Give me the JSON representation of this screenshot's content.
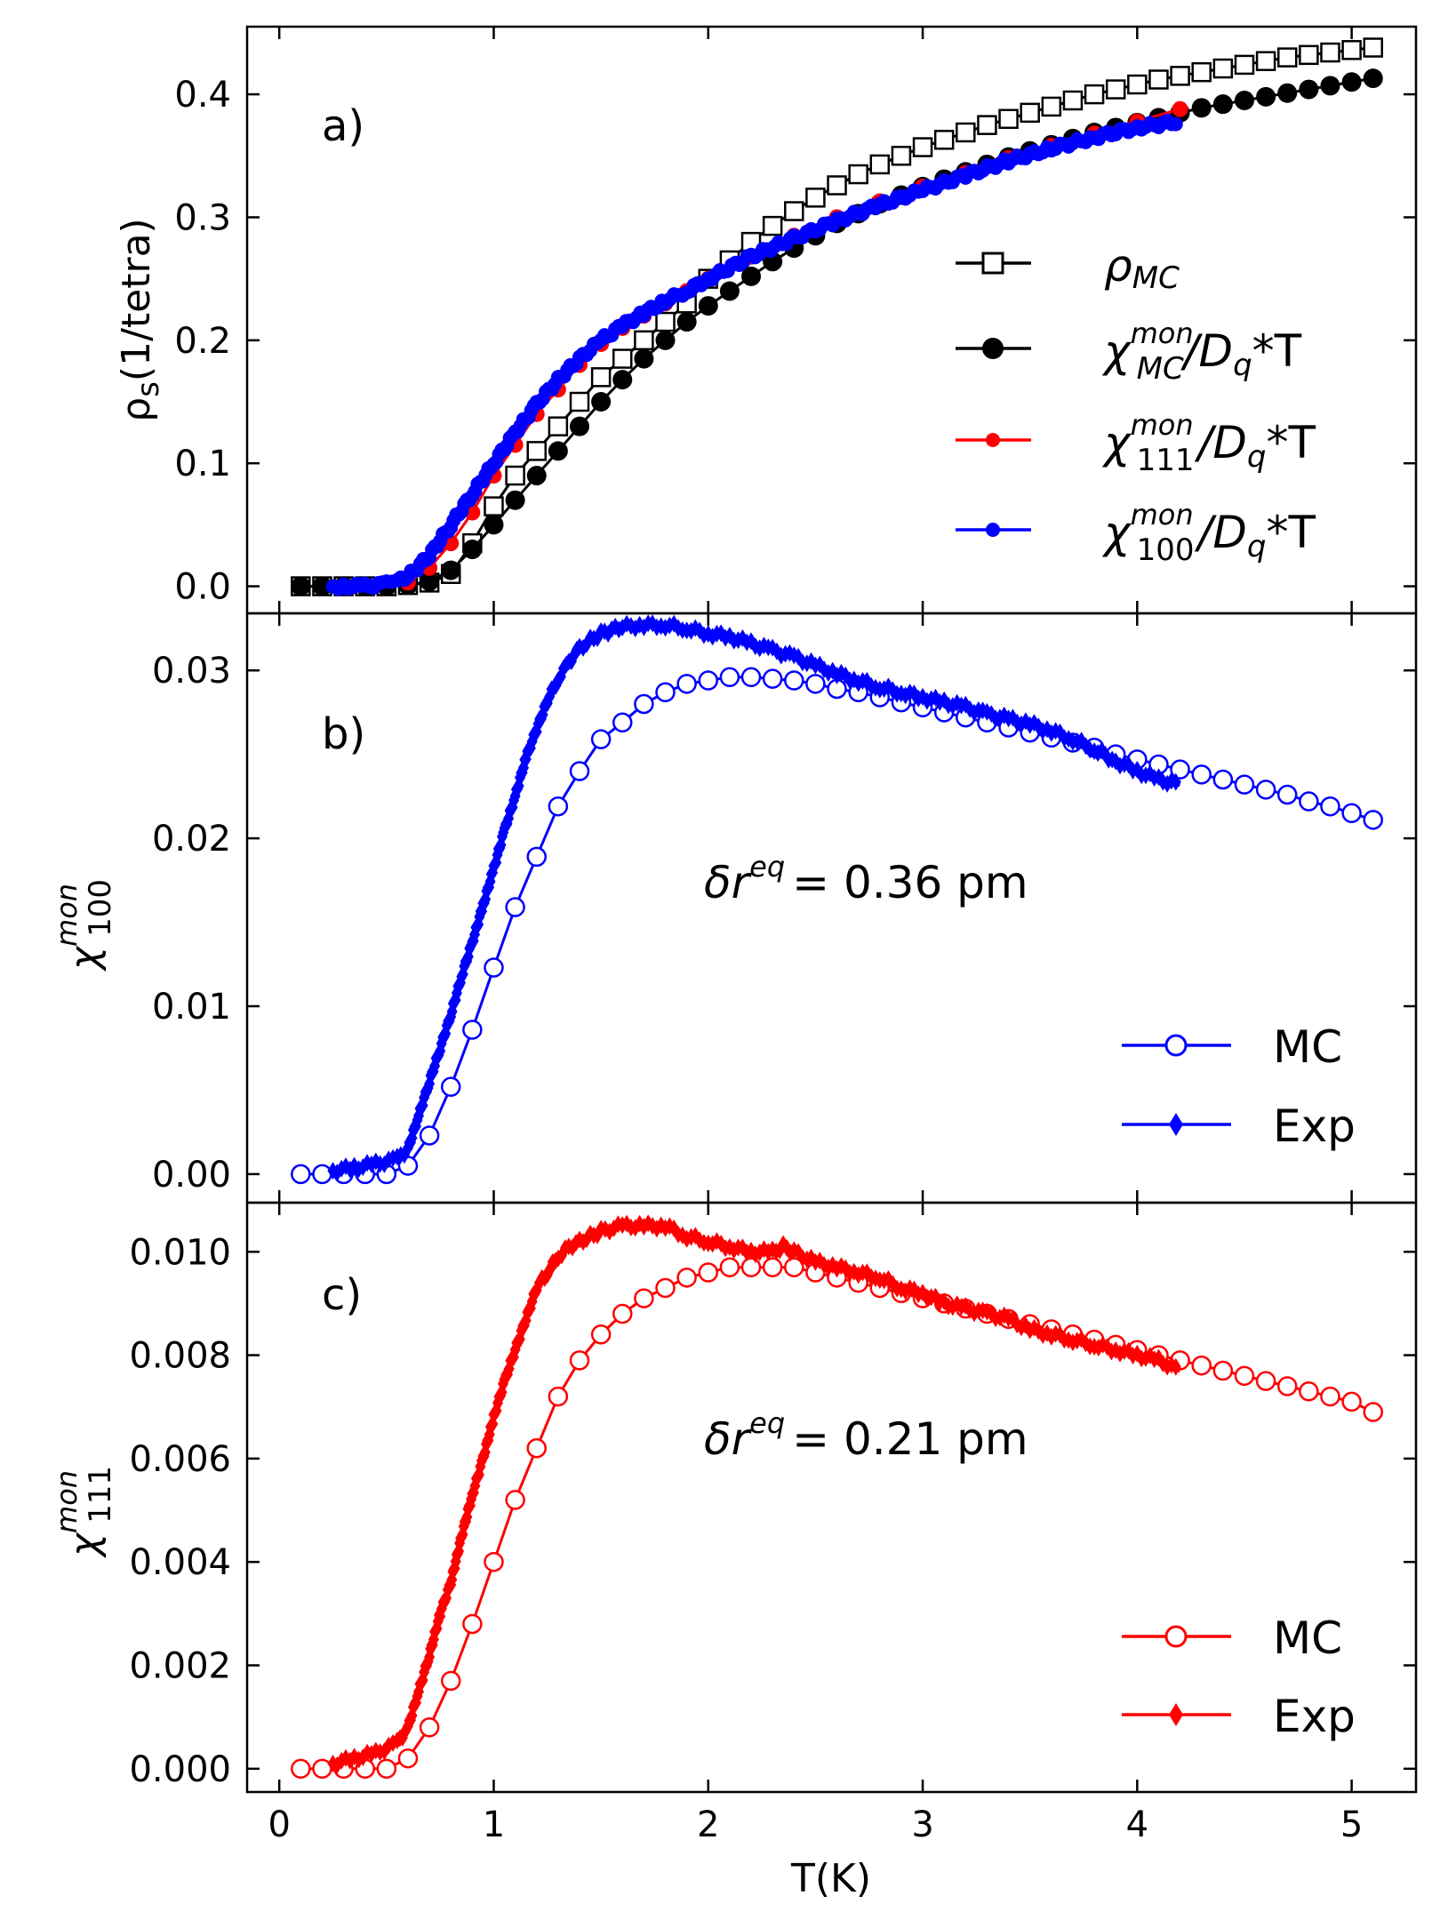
{
  "chart_data": [
    {
      "panel": "a)",
      "type": "scatter",
      "ylabel": "ρs(1/tetra)",
      "xlim": [
        -0.15,
        5.3
      ],
      "ylim": [
        -0.022,
        0.455
      ],
      "xticks": [
        0,
        1,
        2,
        3,
        4,
        5
      ],
      "yticks": [
        "0.0",
        "0.1",
        "0.2",
        "0.3",
        "0.4"
      ],
      "legend_position": "right",
      "legend": [
        "ρMC",
        "χMCmon/Dq*T",
        "χ111mon/Dq*T",
        "χ100mon/Dq*T"
      ],
      "series": [
        {
          "name": "rho_MC",
          "color": "#000000",
          "marker": "open-square",
          "x": [
            0.1,
            0.2,
            0.3,
            0.4,
            0.5,
            0.6,
            0.7,
            0.8,
            0.9,
            1.0,
            1.1,
            1.2,
            1.3,
            1.4,
            1.5,
            1.6,
            1.7,
            1.8,
            1.9,
            2.0,
            2.1,
            2.2,
            2.3,
            2.4,
            2.5,
            2.6,
            2.7,
            2.8,
            2.9,
            3.0,
            3.1,
            3.2,
            3.3,
            3.4,
            3.5,
            3.6,
            3.7,
            3.8,
            3.9,
            4.0,
            4.1,
            4.2,
            4.3,
            4.4,
            4.5,
            4.6,
            4.7,
            4.8,
            4.9,
            5.0,
            5.1
          ],
          "y": [
            0.0,
            0.0,
            0.0,
            0.0,
            0.0,
            0.001,
            0.003,
            0.01,
            0.035,
            0.065,
            0.09,
            0.11,
            0.13,
            0.15,
            0.17,
            0.185,
            0.2,
            0.215,
            0.23,
            0.25,
            0.265,
            0.28,
            0.293,
            0.305,
            0.316,
            0.326,
            0.335,
            0.343,
            0.35,
            0.357,
            0.363,
            0.369,
            0.375,
            0.38,
            0.385,
            0.39,
            0.395,
            0.4,
            0.404,
            0.408,
            0.412,
            0.415,
            0.418,
            0.421,
            0.424,
            0.427,
            0.43,
            0.432,
            0.434,
            0.436,
            0.438
          ]
        },
        {
          "name": "chi_MC_over_Dq_T",
          "color": "#000000",
          "marker": "filled-circle",
          "x": [
            0.1,
            0.2,
            0.3,
            0.4,
            0.5,
            0.6,
            0.7,
            0.8,
            0.9,
            1.0,
            1.1,
            1.2,
            1.3,
            1.4,
            1.5,
            1.6,
            1.7,
            1.8,
            1.9,
            2.0,
            2.1,
            2.2,
            2.3,
            2.4,
            2.5,
            2.6,
            2.7,
            2.8,
            2.9,
            3.0,
            3.1,
            3.2,
            3.3,
            3.4,
            3.5,
            3.6,
            3.7,
            3.8,
            3.9,
            4.0,
            4.1,
            4.2,
            4.3,
            4.4,
            4.5,
            4.6,
            4.7,
            4.8,
            4.9,
            5.0,
            5.1
          ],
          "y": [
            0.0,
            0.0,
            0.0,
            0.0,
            0.0,
            0.001,
            0.004,
            0.013,
            0.03,
            0.05,
            0.07,
            0.09,
            0.11,
            0.13,
            0.15,
            0.168,
            0.185,
            0.2,
            0.215,
            0.228,
            0.24,
            0.252,
            0.264,
            0.275,
            0.285,
            0.295,
            0.303,
            0.311,
            0.318,
            0.325,
            0.331,
            0.337,
            0.343,
            0.349,
            0.354,
            0.359,
            0.364,
            0.369,
            0.373,
            0.377,
            0.381,
            0.385,
            0.389,
            0.392,
            0.395,
            0.398,
            0.401,
            0.404,
            0.407,
            0.41,
            0.413
          ]
        },
        {
          "name": "chi_111_over_Dq_T",
          "color": "#ff0000",
          "marker": "small-filled-circle",
          "x": [
            0.6,
            0.7,
            0.8,
            0.9,
            1.0,
            1.1,
            1.2,
            1.3,
            1.4,
            1.5,
            1.6,
            1.7,
            1.8,
            1.9,
            2.0,
            2.2,
            2.4,
            2.6,
            2.8,
            3.0,
            3.2,
            3.4,
            3.6,
            3.8,
            4.0,
            4.2
          ],
          "y": [
            0.003,
            0.015,
            0.035,
            0.06,
            0.09,
            0.115,
            0.14,
            0.16,
            0.18,
            0.197,
            0.21,
            0.22,
            0.23,
            0.24,
            0.25,
            0.268,
            0.285,
            0.3,
            0.313,
            0.325,
            0.336,
            0.348,
            0.358,
            0.368,
            0.378,
            0.388
          ]
        },
        {
          "name": "chi_100_over_Dq_T",
          "color": "#0000ff",
          "marker": "filled-circle-dense",
          "x": [
            0.25,
            0.3,
            0.4,
            0.5,
            0.55,
            0.6,
            0.7,
            0.8,
            0.9,
            1.0,
            1.1,
            1.2,
            1.3,
            1.4,
            1.5,
            1.6,
            1.7,
            1.8,
            1.9,
            2.0,
            2.2,
            2.4,
            2.6,
            2.8,
            3.0,
            3.2,
            3.4,
            3.6,
            3.8,
            4.0,
            4.2
          ],
          "y": [
            0.0,
            0.0,
            0.0,
            0.002,
            0.004,
            0.008,
            0.025,
            0.05,
            0.075,
            0.1,
            0.125,
            0.148,
            0.168,
            0.185,
            0.2,
            0.212,
            0.222,
            0.232,
            0.24,
            0.25,
            0.268,
            0.283,
            0.297,
            0.31,
            0.322,
            0.334,
            0.346,
            0.356,
            0.365,
            0.373,
            0.378
          ]
        }
      ]
    },
    {
      "panel": "b)",
      "type": "scatter",
      "ylabel": "χ100mon",
      "xlim": [
        -0.15,
        5.3
      ],
      "ylim": [
        -0.0017,
        0.0334
      ],
      "xticks": [
        0,
        1,
        2,
        3,
        4,
        5
      ],
      "yticks": [
        "0.00",
        "0.01",
        "0.02",
        "0.03"
      ],
      "annotation": {
        "prefix": "δr",
        "sup": "eq",
        "value": "= 0.36 pm"
      },
      "legend_position": "bottom-right",
      "legend": [
        "MC",
        "Exp"
      ],
      "series": [
        {
          "name": "MC",
          "color": "#0000ff",
          "marker": "open-circle",
          "x": [
            0.1,
            0.2,
            0.3,
            0.4,
            0.5,
            0.6,
            0.7,
            0.8,
            0.9,
            1.0,
            1.1,
            1.2,
            1.3,
            1.4,
            1.5,
            1.6,
            1.7,
            1.8,
            1.9,
            2.0,
            2.1,
            2.2,
            2.3,
            2.4,
            2.5,
            2.6,
            2.7,
            2.8,
            2.9,
            3.0,
            3.1,
            3.2,
            3.3,
            3.4,
            3.5,
            3.6,
            3.7,
            3.8,
            3.9,
            4.0,
            4.1,
            4.2,
            4.3,
            4.4,
            4.5,
            4.6,
            4.7,
            4.8,
            4.9,
            5.0,
            5.1
          ],
          "y": [
            0.0,
            0.0,
            0.0,
            0.0,
            0.0,
            0.0005,
            0.0023,
            0.0052,
            0.0086,
            0.0123,
            0.0159,
            0.0189,
            0.0219,
            0.024,
            0.0259,
            0.0269,
            0.028,
            0.0287,
            0.0292,
            0.0294,
            0.0296,
            0.0296,
            0.0295,
            0.0294,
            0.0292,
            0.0289,
            0.0287,
            0.0284,
            0.0281,
            0.0278,
            0.0275,
            0.0272,
            0.0269,
            0.0266,
            0.0263,
            0.026,
            0.0257,
            0.0254,
            0.025,
            0.0247,
            0.0244,
            0.0241,
            0.0238,
            0.0235,
            0.0232,
            0.0229,
            0.0226,
            0.0222,
            0.0219,
            0.0215,
            0.0211
          ]
        },
        {
          "name": "Exp",
          "color": "#0000ff",
          "marker": "dense-diamond",
          "x": [
            0.25,
            0.35,
            0.45,
            0.55,
            0.6,
            0.65,
            0.7,
            0.75,
            0.8,
            0.85,
            0.9,
            0.95,
            1.0,
            1.05,
            1.1,
            1.15,
            1.2,
            1.25,
            1.3,
            1.35,
            1.4,
            1.45,
            1.5,
            1.55,
            1.6,
            1.7,
            1.8,
            1.9,
            2.0,
            2.1,
            2.2,
            2.3,
            2.4,
            2.5,
            2.6,
            2.7,
            2.8,
            2.9,
            3.0,
            3.1,
            3.2,
            3.3,
            3.4,
            3.5,
            3.6,
            3.7,
            3.8,
            3.9,
            4.0,
            4.1,
            4.2
          ],
          "y": [
            0.0002,
            0.0004,
            0.0006,
            0.0009,
            0.0015,
            0.0035,
            0.0055,
            0.0075,
            0.0095,
            0.0118,
            0.0138,
            0.016,
            0.0182,
            0.0205,
            0.0225,
            0.0248,
            0.0265,
            0.0282,
            0.0295,
            0.0305,
            0.0313,
            0.0318,
            0.0322,
            0.0324,
            0.0326,
            0.0327,
            0.0327,
            0.0325,
            0.0322,
            0.032,
            0.0316,
            0.0312,
            0.0308,
            0.0303,
            0.0298,
            0.0294,
            0.029,
            0.0287,
            0.0284,
            0.0281,
            0.0278,
            0.0274,
            0.0271,
            0.0268,
            0.0264,
            0.0259,
            0.0253,
            0.0246,
            0.024,
            0.0235,
            0.0232
          ]
        }
      ]
    },
    {
      "panel": "c)",
      "type": "scatter",
      "ylabel": "χ111mon",
      "xlim": [
        -0.15,
        5.3
      ],
      "ylim": [
        -0.00045,
        0.01095
      ],
      "xticks": [
        0,
        1,
        2,
        3,
        4,
        5
      ],
      "yticks": [
        "0.000",
        "0.002",
        "0.004",
        "0.006",
        "0.008",
        "0.010"
      ],
      "xlabel": "T(K)",
      "annotation": {
        "prefix": "δr",
        "sup": "eq",
        "value": "= 0.21 pm"
      },
      "legend_position": "bottom-right",
      "legend": [
        "MC",
        "Exp"
      ],
      "series": [
        {
          "name": "MC",
          "color": "#ff0000",
          "marker": "open-circle",
          "x": [
            0.1,
            0.2,
            0.3,
            0.4,
            0.5,
            0.6,
            0.7,
            0.8,
            0.9,
            1.0,
            1.1,
            1.2,
            1.3,
            1.4,
            1.5,
            1.6,
            1.7,
            1.8,
            1.9,
            2.0,
            2.1,
            2.2,
            2.3,
            2.4,
            2.5,
            2.6,
            2.7,
            2.8,
            2.9,
            3.0,
            3.1,
            3.2,
            3.3,
            3.4,
            3.5,
            3.6,
            3.7,
            3.8,
            3.9,
            4.0,
            4.1,
            4.2,
            4.3,
            4.4,
            4.5,
            4.6,
            4.7,
            4.8,
            4.9,
            5.0,
            5.1
          ],
          "y": [
            0.0,
            0.0,
            0.0,
            0.0,
            0.0,
            0.0002,
            0.0008,
            0.0017,
            0.0028,
            0.004,
            0.0052,
            0.0062,
            0.0072,
            0.0079,
            0.0084,
            0.0088,
            0.0091,
            0.0093,
            0.0095,
            0.0096,
            0.0097,
            0.0097,
            0.0097,
            0.0097,
            0.0096,
            0.0095,
            0.0094,
            0.0093,
            0.0092,
            0.0091,
            0.009,
            0.0089,
            0.0088,
            0.0087,
            0.0086,
            0.0085,
            0.0084,
            0.0083,
            0.0082,
            0.0081,
            0.008,
            0.0079,
            0.0078,
            0.0077,
            0.0076,
            0.0075,
            0.0074,
            0.0073,
            0.0072,
            0.0071,
            0.0069
          ]
        },
        {
          "name": "Exp",
          "color": "#ff0000",
          "marker": "dense-diamond",
          "x": [
            0.25,
            0.35,
            0.45,
            0.55,
            0.6,
            0.65,
            0.7,
            0.75,
            0.8,
            0.85,
            0.9,
            0.95,
            1.0,
            1.05,
            1.1,
            1.15,
            1.2,
            1.25,
            1.3,
            1.35,
            1.4,
            1.45,
            1.5,
            1.6,
            1.7,
            1.8,
            1.9,
            2.0,
            2.1,
            2.2,
            2.3,
            2.35,
            2.4,
            2.5,
            2.6,
            2.7,
            2.8,
            2.9,
            3.0,
            3.1,
            3.2,
            3.3,
            3.4,
            3.5,
            3.6,
            3.7,
            3.8,
            3.9,
            4.0,
            4.1,
            4.2
          ],
          "y": [
            0.0001,
            0.0002,
            0.0003,
            0.0005,
            0.0008,
            0.0015,
            0.0022,
            0.003,
            0.0036,
            0.0045,
            0.0053,
            0.006,
            0.0068,
            0.0075,
            0.0081,
            0.0087,
            0.0093,
            0.0096,
            0.0099,
            0.0101,
            0.0102,
            0.0103,
            0.0104,
            0.0105,
            0.0105,
            0.0105,
            0.0103,
            0.0102,
            0.0101,
            0.01,
            0.01,
            0.0101,
            0.01,
            0.0098,
            0.0097,
            0.0096,
            0.0095,
            0.0093,
            0.0092,
            0.009,
            0.0089,
            0.0088,
            0.0087,
            0.0085,
            0.0084,
            0.0083,
            0.0082,
            0.0081,
            0.008,
            0.0079,
            0.0077
          ]
        }
      ]
    }
  ]
}
